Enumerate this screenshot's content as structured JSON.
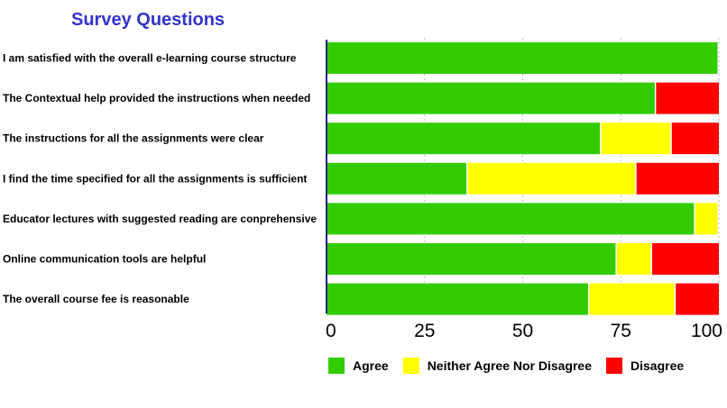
{
  "header": {
    "title": "Survey Questions"
  },
  "colors": {
    "agree": "#33cc00",
    "neutral": "#ffff00",
    "disagree": "#ff0000",
    "title": "#3333cc",
    "axis": "#1a237e",
    "grid": "#bbbbbb"
  },
  "chart_data": {
    "type": "bar",
    "orientation": "horizontal",
    "stacked": true,
    "title": "Survey Questions",
    "xlabel": "",
    "ylabel": "",
    "xlim": [
      0,
      100
    ],
    "xticks": [
      "0",
      "25",
      "50",
      "75",
      "100"
    ],
    "grid": "vertical-dotted",
    "legend_position": "bottom",
    "categories": [
      "I am satisfied with the overall e-learning course structure",
      "The Contextual help provided the instructions when needed",
      "The instructions for all the assignments were clear",
      "I find the time specified for all the assignments is sufficient",
      "Educator lectures with suggested reading are conprehensive",
      "Online communication tools are helpful",
      "The overall course fee is reasonable"
    ],
    "series": [
      {
        "name": "Agree",
        "color": "#33cc00",
        "values": [
          100,
          84,
          70,
          36,
          94,
          74,
          67
        ]
      },
      {
        "name": "Neither Agree Nor Disagree",
        "color": "#ffff00",
        "values": [
          0,
          0,
          18,
          43,
          6,
          9,
          22
        ]
      },
      {
        "name": "Disagree",
        "color": "#ff0000",
        "values": [
          0,
          16,
          12,
          21,
          0,
          17,
          11
        ]
      }
    ]
  }
}
